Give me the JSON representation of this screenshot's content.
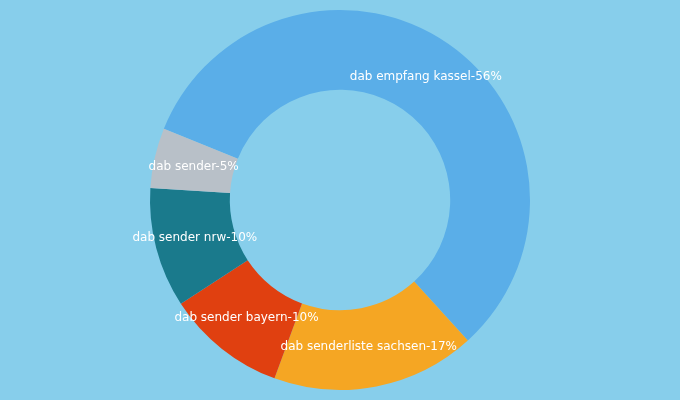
{
  "chart_data": {
    "type": "pie",
    "categories": [
      "dab empfang kassel-56%",
      "dab senderliste sachsen-17%",
      "dab sender bayern-10%",
      "dab sender nrw-10%",
      "dab sender-5%"
    ],
    "values": [
      56,
      17,
      10,
      10,
      5
    ],
    "colors": [
      "#5AAEE8",
      "#F5A623",
      "#E04010",
      "#1A7A8C",
      "#B8C0C8"
    ]
  }
}
